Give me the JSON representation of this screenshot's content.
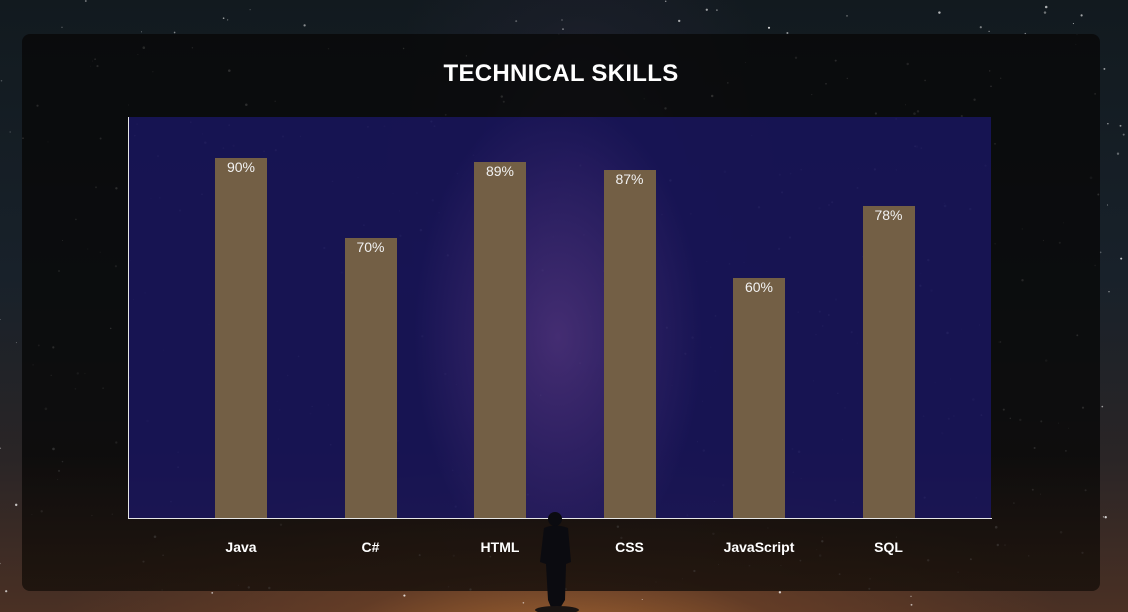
{
  "section_title": "TECHNICAL SKILLS",
  "colors": {
    "bar": "#735f45",
    "plot_background": "#1c186e",
    "text": "#ffffff"
  },
  "chart_data": {
    "type": "bar",
    "title": "TECHNICAL SKILLS",
    "categories": [
      "Java",
      "C#",
      "HTML",
      "CSS",
      "JavaScript",
      "SQL"
    ],
    "values": [
      90,
      70,
      89,
      87,
      60,
      78
    ],
    "value_labels": [
      "90%",
      "70%",
      "89%",
      "87%",
      "60%",
      "78%"
    ],
    "ylim": [
      0,
      100
    ],
    "grid": false,
    "legend": "none"
  }
}
